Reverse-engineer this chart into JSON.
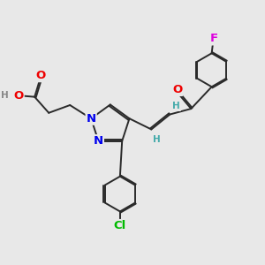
{
  "background_color": "#e8e8e8",
  "bond_color": "#2a2a2a",
  "bond_width": 1.4,
  "atom_colors": {
    "O": "#ee0000",
    "N": "#0000ee",
    "Cl": "#00bb00",
    "F": "#dd00dd",
    "H_gray": "#888888",
    "H_teal": "#44aaaa",
    "C": "#2a2a2a"
  },
  "font_size_atom": 9.5,
  "font_size_small": 7.5,
  "figsize": [
    3.0,
    3.0
  ],
  "dpi": 100,
  "xlim": [
    0.0,
    10.0
  ],
  "ylim": [
    0.5,
    10.0
  ]
}
